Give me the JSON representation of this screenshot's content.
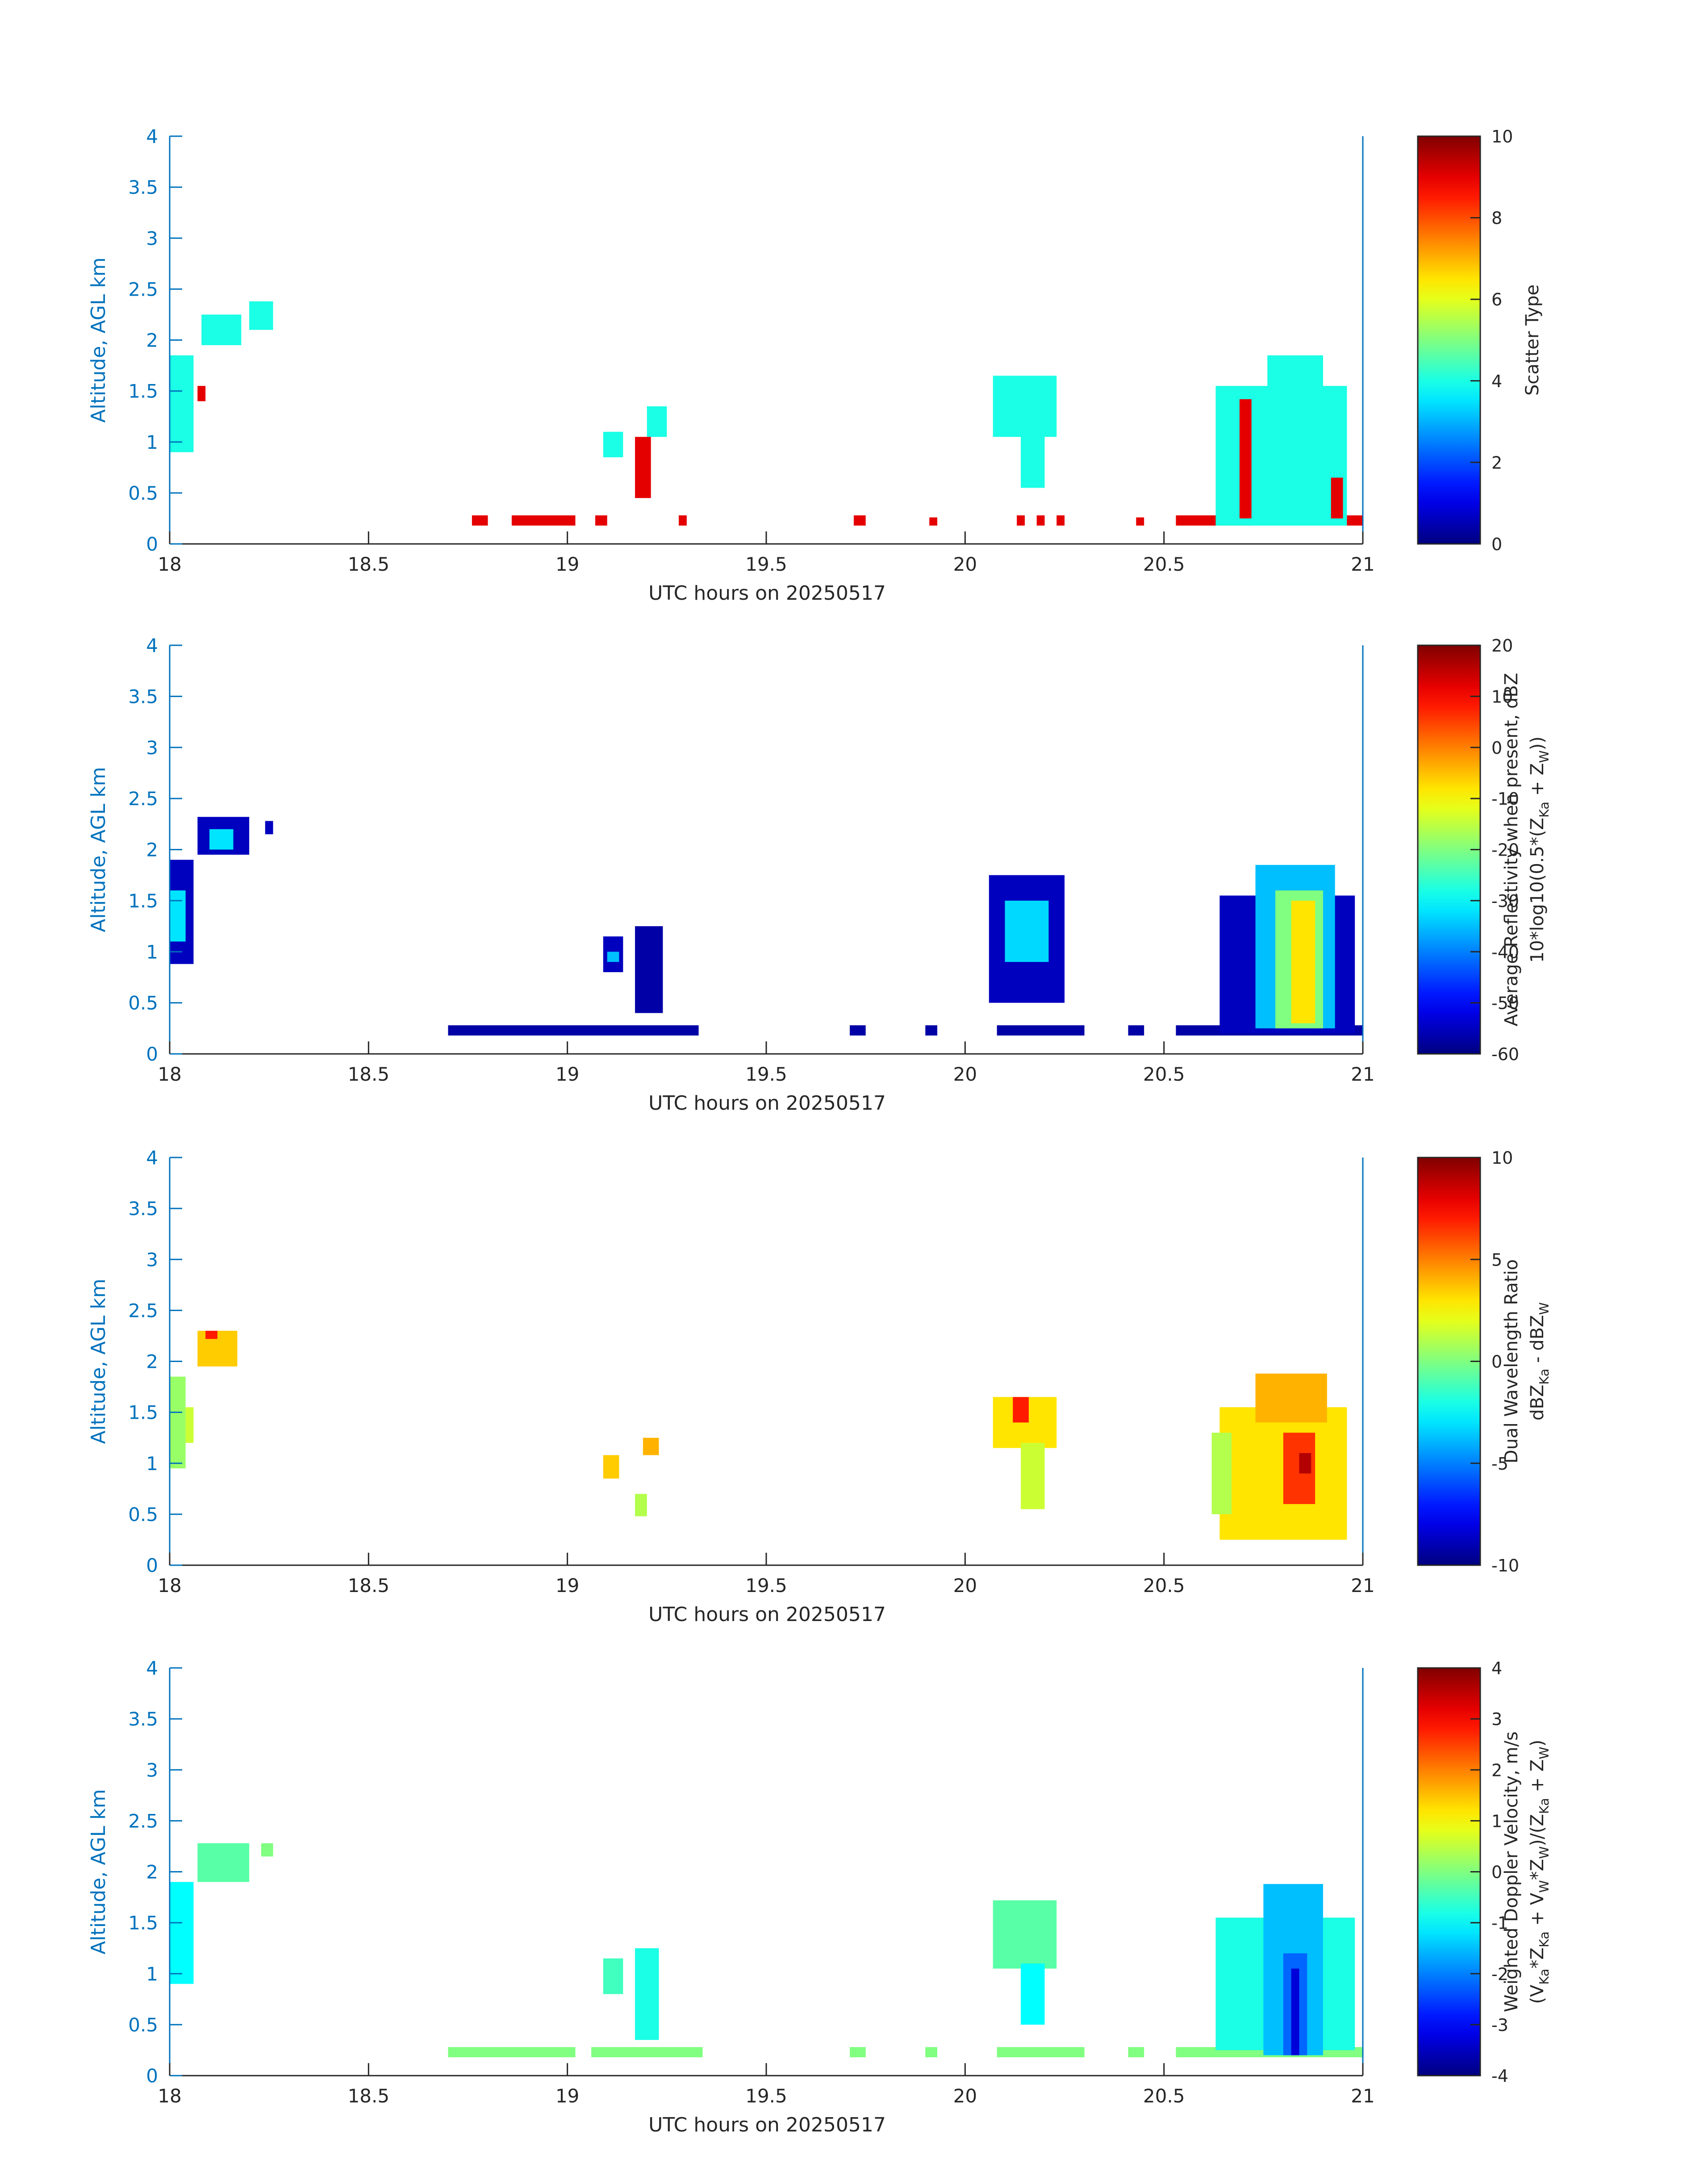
{
  "chart_data": [
    {
      "type": "heatmap",
      "xlabel": "UTC hours on 20250517",
      "ylabel": "Altitude, AGL km",
      "xlim": [
        18,
        21
      ],
      "ylim": [
        0,
        4
      ],
      "xticks": [
        "18",
        "18.5",
        "19",
        "19.5",
        "20",
        "20.5",
        "21"
      ],
      "yticks": [
        "0",
        "0.5",
        "1",
        "1.5",
        "2",
        "2.5",
        "3",
        "3.5",
        "4"
      ],
      "colorbar": {
        "label_lines": [
          "Scatter Type"
        ],
        "clim": [
          0,
          10
        ],
        "ticks": [
          "0",
          "2",
          "4",
          "6",
          "8",
          "10"
        ],
        "colormap": "jet"
      },
      "regions": [
        {
          "x0": 18.0,
          "x1": 18.06,
          "y0": 0.9,
          "y1": 1.85,
          "value": 4
        },
        {
          "x0": 18.08,
          "x1": 18.18,
          "y0": 1.95,
          "y1": 2.25,
          "value": 4
        },
        {
          "x0": 18.2,
          "x1": 18.26,
          "y0": 2.1,
          "y1": 2.38,
          "value": 4
        },
        {
          "x0": 18.07,
          "x1": 18.09,
          "y0": 1.4,
          "y1": 1.55,
          "value": 9
        },
        {
          "x0": 19.09,
          "x1": 19.14,
          "y0": 0.85,
          "y1": 1.1,
          "value": 4
        },
        {
          "x0": 19.2,
          "x1": 19.25,
          "y0": 1.05,
          "y1": 1.35,
          "value": 4
        },
        {
          "x0": 19.17,
          "x1": 19.21,
          "y0": 0.45,
          "y1": 1.05,
          "value": 9
        },
        {
          "x0": 18.76,
          "x1": 18.8,
          "y0": 0.18,
          "y1": 0.28,
          "value": 9
        },
        {
          "x0": 18.86,
          "x1": 19.02,
          "y0": 0.18,
          "y1": 0.28,
          "value": 9
        },
        {
          "x0": 19.07,
          "x1": 19.1,
          "y0": 0.18,
          "y1": 0.28,
          "value": 9
        },
        {
          "x0": 19.28,
          "x1": 19.3,
          "y0": 0.18,
          "y1": 0.28,
          "value": 9
        },
        {
          "x0": 19.72,
          "x1": 19.75,
          "y0": 0.18,
          "y1": 0.28,
          "value": 9
        },
        {
          "x0": 19.91,
          "x1": 19.93,
          "y0": 0.18,
          "y1": 0.26,
          "value": 9
        },
        {
          "x0": 20.13,
          "x1": 20.15,
          "y0": 0.18,
          "y1": 0.28,
          "value": 9
        },
        {
          "x0": 20.18,
          "x1": 20.2,
          "y0": 0.18,
          "y1": 0.28,
          "value": 9
        },
        {
          "x0": 20.23,
          "x1": 20.25,
          "y0": 0.18,
          "y1": 0.28,
          "value": 9
        },
        {
          "x0": 20.43,
          "x1": 20.45,
          "y0": 0.18,
          "y1": 0.26,
          "value": 9
        },
        {
          "x0": 20.07,
          "x1": 20.23,
          "y0": 1.05,
          "y1": 1.65,
          "value": 4
        },
        {
          "x0": 20.14,
          "x1": 20.2,
          "y0": 0.55,
          "y1": 1.1,
          "value": 4
        },
        {
          "x0": 20.53,
          "x1": 20.72,
          "y0": 0.18,
          "y1": 0.28,
          "value": 9
        },
        {
          "x0": 20.63,
          "x1": 20.96,
          "y0": 0.18,
          "y1": 1.55,
          "value": 4
        },
        {
          "x0": 20.76,
          "x1": 20.9,
          "y0": 1.5,
          "y1": 1.85,
          "value": 4
        },
        {
          "x0": 20.69,
          "x1": 20.72,
          "y0": 0.25,
          "y1": 1.42,
          "value": 9
        },
        {
          "x0": 20.92,
          "x1": 20.95,
          "y0": 0.25,
          "y1": 0.65,
          "value": 9
        },
        {
          "x0": 20.96,
          "x1": 21.0,
          "y0": 0.18,
          "y1": 0.28,
          "value": 9
        }
      ]
    },
    {
      "type": "heatmap",
      "xlabel": "UTC hours on 20250517",
      "ylabel": "Altitude, AGL km",
      "xlim": [
        18,
        21
      ],
      "ylim": [
        0,
        4
      ],
      "xticks": [
        "18",
        "18.5",
        "19",
        "19.5",
        "20",
        "20.5",
        "21"
      ],
      "yticks": [
        "0",
        "0.5",
        "1",
        "1.5",
        "2",
        "2.5",
        "3",
        "3.5",
        "4"
      ],
      "colorbar": {
        "label_lines": [
          "Average Reflectivity when present, dBZ",
          "10*log10(0.5*(Z_Ka + Z_W))"
        ],
        "clim": [
          -60,
          20
        ],
        "ticks": [
          "-60",
          "-50",
          "-40",
          "-30",
          "-20",
          "-10",
          "0",
          "10",
          "20"
        ],
        "colormap": "jet"
      },
      "regions": [
        {
          "x0": 18.0,
          "x1": 18.06,
          "y0": 0.88,
          "y1": 1.9,
          "value": -55
        },
        {
          "x0": 18.0,
          "x1": 18.04,
          "y0": 1.1,
          "y1": 1.6,
          "value": -32
        },
        {
          "x0": 18.07,
          "x1": 18.2,
          "y0": 1.95,
          "y1": 2.32,
          "value": -55
        },
        {
          "x0": 18.1,
          "x1": 18.16,
          "y0": 2.0,
          "y1": 2.2,
          "value": -32
        },
        {
          "x0": 18.24,
          "x1": 18.26,
          "y0": 2.15,
          "y1": 2.28,
          "value": -55
        },
        {
          "x0": 19.09,
          "x1": 19.14,
          "y0": 0.8,
          "y1": 1.15,
          "value": -55
        },
        {
          "x0": 19.1,
          "x1": 19.13,
          "y0": 0.9,
          "y1": 1.0,
          "value": -35
        },
        {
          "x0": 19.17,
          "x1": 19.24,
          "y0": 0.4,
          "y1": 1.25,
          "value": -57
        },
        {
          "x0": 18.7,
          "x1": 19.33,
          "y0": 0.18,
          "y1": 0.28,
          "value": -57
        },
        {
          "x0": 19.71,
          "x1": 19.75,
          "y0": 0.18,
          "y1": 0.28,
          "value": -57
        },
        {
          "x0": 19.9,
          "x1": 19.93,
          "y0": 0.18,
          "y1": 0.28,
          "value": -57
        },
        {
          "x0": 20.08,
          "x1": 20.3,
          "y0": 0.18,
          "y1": 0.28,
          "value": -57
        },
        {
          "x0": 20.41,
          "x1": 20.45,
          "y0": 0.18,
          "y1": 0.28,
          "value": -57
        },
        {
          "x0": 20.06,
          "x1": 20.25,
          "y0": 0.5,
          "y1": 1.75,
          "value": -55
        },
        {
          "x0": 20.1,
          "x1": 20.21,
          "y0": 0.9,
          "y1": 1.5,
          "value": -33
        },
        {
          "x0": 20.53,
          "x1": 21.0,
          "y0": 0.18,
          "y1": 0.28,
          "value": -57
        },
        {
          "x0": 20.64,
          "x1": 20.98,
          "y0": 0.2,
          "y1": 1.55,
          "value": -55
        },
        {
          "x0": 20.73,
          "x1": 20.93,
          "y0": 0.25,
          "y1": 1.85,
          "value": -35
        },
        {
          "x0": 20.78,
          "x1": 20.9,
          "y0": 0.25,
          "y1": 1.6,
          "value": -20
        },
        {
          "x0": 20.82,
          "x1": 20.88,
          "y0": 0.3,
          "y1": 1.5,
          "value": -8
        }
      ]
    },
    {
      "type": "heatmap",
      "xlabel": "UTC hours on 20250517",
      "ylabel": "Altitude, AGL km",
      "xlim": [
        18,
        21
      ],
      "ylim": [
        0,
        4
      ],
      "xticks": [
        "18",
        "18.5",
        "19",
        "19.5",
        "20",
        "20.5",
        "21"
      ],
      "yticks": [
        "0",
        "0.5",
        "1",
        "1.5",
        "2",
        "2.5",
        "3",
        "3.5",
        "4"
      ],
      "colorbar": {
        "label_lines": [
          "Dual Wavelength Ratio",
          "dBZ_Ka - dBZ_W"
        ],
        "clim": [
          -10,
          10
        ],
        "ticks": [
          "-10",
          "-5",
          "0",
          "5",
          "10"
        ],
        "colormap": "jet"
      },
      "regions": [
        {
          "x0": 18.0,
          "x1": 18.04,
          "y0": 0.95,
          "y1": 1.85,
          "value": 0.5
        },
        {
          "x0": 18.04,
          "x1": 18.06,
          "y0": 1.2,
          "y1": 1.55,
          "value": 1.5
        },
        {
          "x0": 18.07,
          "x1": 18.17,
          "y0": 1.95,
          "y1": 2.3,
          "value": 3.5
        },
        {
          "x0": 18.09,
          "x1": 18.12,
          "y0": 2.22,
          "y1": 2.3,
          "value": 7
        },
        {
          "x0": 19.09,
          "x1": 19.13,
          "y0": 0.85,
          "y1": 1.08,
          "value": 3.5
        },
        {
          "x0": 19.17,
          "x1": 19.2,
          "y0": 0.48,
          "y1": 0.7,
          "value": 1
        },
        {
          "x0": 19.19,
          "x1": 19.23,
          "y0": 1.08,
          "y1": 1.25,
          "value": 4
        },
        {
          "x0": 20.07,
          "x1": 20.23,
          "y0": 1.15,
          "y1": 1.65,
          "value": 3
        },
        {
          "x0": 20.12,
          "x1": 20.16,
          "y0": 1.4,
          "y1": 1.65,
          "value": 7
        },
        {
          "x0": 20.14,
          "x1": 20.2,
          "y0": 0.55,
          "y1": 1.2,
          "value": 1.5
        },
        {
          "x0": 20.64,
          "x1": 20.96,
          "y0": 0.25,
          "y1": 1.55,
          "value": 3
        },
        {
          "x0": 20.73,
          "x1": 20.91,
          "y0": 1.4,
          "y1": 1.88,
          "value": 4
        },
        {
          "x0": 20.8,
          "x1": 20.88,
          "y0": 0.6,
          "y1": 1.3,
          "value": 6.5
        },
        {
          "x0": 20.84,
          "x1": 20.87,
          "y0": 0.9,
          "y1": 1.1,
          "value": 9
        },
        {
          "x0": 20.62,
          "x1": 20.67,
          "y0": 0.5,
          "y1": 1.3,
          "value": 1
        }
      ]
    },
    {
      "type": "heatmap",
      "xlabel": "UTC hours on 20250517",
      "ylabel": "Altitude, AGL km",
      "xlim": [
        18,
        21
      ],
      "ylim": [
        0,
        4
      ],
      "xticks": [
        "18",
        "18.5",
        "19",
        "19.5",
        "20",
        "20.5",
        "21"
      ],
      "yticks": [
        "0",
        "0.5",
        "1",
        "1.5",
        "2",
        "2.5",
        "3",
        "3.5",
        "4"
      ],
      "colorbar": {
        "label_lines": [
          "Weighted Doppler Velocity, m/s",
          "(V_Ka*Z_Ka + V_W*Z_W)/(Z_Ka + Z_W)"
        ],
        "clim": [
          -4,
          4
        ],
        "ticks": [
          "-4",
          "-3",
          "-2",
          "-1",
          "0",
          "1",
          "2",
          "3",
          "4"
        ],
        "colormap": "jet"
      },
      "regions": [
        {
          "x0": 18.0,
          "x1": 18.06,
          "y0": 0.9,
          "y1": 1.9,
          "value": -1
        },
        {
          "x0": 18.07,
          "x1": 18.2,
          "y0": 1.9,
          "y1": 2.28,
          "value": -0.3
        },
        {
          "x0": 18.23,
          "x1": 18.26,
          "y0": 2.15,
          "y1": 2.28,
          "value": 0
        },
        {
          "x0": 19.09,
          "x1": 19.14,
          "y0": 0.8,
          "y1": 1.15,
          "value": -0.5
        },
        {
          "x0": 19.17,
          "x1": 19.23,
          "y0": 0.35,
          "y1": 1.25,
          "value": -0.8
        },
        {
          "x0": 18.7,
          "x1": 19.02,
          "y0": 0.18,
          "y1": 0.28,
          "value": 0
        },
        {
          "x0": 19.06,
          "x1": 19.34,
          "y0": 0.18,
          "y1": 0.28,
          "value": 0
        },
        {
          "x0": 19.71,
          "x1": 19.75,
          "y0": 0.18,
          "y1": 0.28,
          "value": 0
        },
        {
          "x0": 19.9,
          "x1": 19.93,
          "y0": 0.18,
          "y1": 0.28,
          "value": 0
        },
        {
          "x0": 20.08,
          "x1": 20.3,
          "y0": 0.18,
          "y1": 0.28,
          "value": 0
        },
        {
          "x0": 20.41,
          "x1": 20.45,
          "y0": 0.18,
          "y1": 0.28,
          "value": 0
        },
        {
          "x0": 20.07,
          "x1": 20.23,
          "y0": 1.05,
          "y1": 1.72,
          "value": -0.3
        },
        {
          "x0": 20.14,
          "x1": 20.2,
          "y0": 0.5,
          "y1": 1.1,
          "value": -1
        },
        {
          "x0": 20.53,
          "x1": 21.0,
          "y0": 0.18,
          "y1": 0.28,
          "value": 0
        },
        {
          "x0": 20.63,
          "x1": 20.98,
          "y0": 0.25,
          "y1": 1.55,
          "value": -0.8
        },
        {
          "x0": 20.75,
          "x1": 20.9,
          "y0": 0.2,
          "y1": 1.88,
          "value": -1.5
        },
        {
          "x0": 20.8,
          "x1": 20.86,
          "y0": 0.2,
          "y1": 1.2,
          "value": -2.2
        },
        {
          "x0": 20.82,
          "x1": 20.84,
          "y0": 0.2,
          "y1": 1.05,
          "value": -3.3
        }
      ]
    }
  ]
}
